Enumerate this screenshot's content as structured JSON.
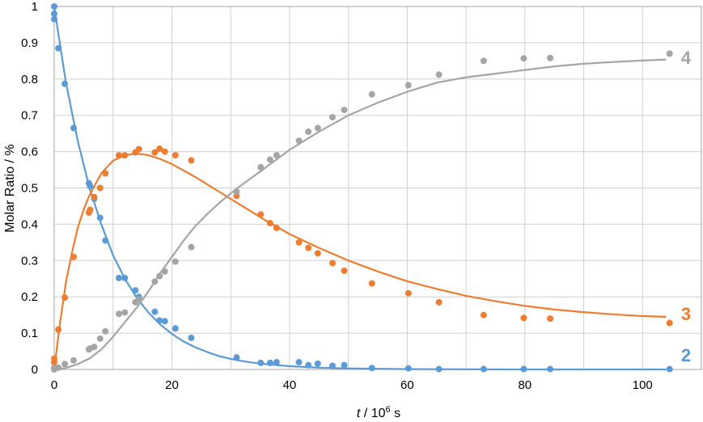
{
  "chart_data": {
    "type": "scatter",
    "xlabel": {
      "italic": "t",
      "text": " / 10",
      "sup": "6",
      "suffix": " s"
    },
    "ylabel": "Molar Ratio / %",
    "xlim": [
      0,
      110
    ],
    "ylim": [
      0,
      1
    ],
    "x_ticks": [
      0,
      20,
      40,
      60,
      80,
      100
    ],
    "y_ticks": [
      0,
      0.1,
      0.2,
      0.3,
      0.4,
      0.5,
      0.6,
      0.7,
      0.8,
      0.9,
      1
    ],
    "x_grid": [
      0,
      10,
      20,
      30,
      40,
      50,
      60,
      70,
      80,
      90,
      100,
      110
    ],
    "grid": true,
    "series": [
      {
        "name": "2",
        "color": "#5b9bd5",
        "points": [
          [
            0,
            1.0
          ],
          [
            0,
            0.98
          ],
          [
            0,
            0.965
          ],
          [
            0.7,
            0.885
          ],
          [
            1.8,
            0.787
          ],
          [
            3.3,
            0.665
          ],
          [
            5.9,
            0.513
          ],
          [
            6.1,
            0.505
          ],
          [
            6.8,
            0.47
          ],
          [
            7.8,
            0.418
          ],
          [
            8.7,
            0.355
          ],
          [
            11,
            0.252
          ],
          [
            12,
            0.252
          ],
          [
            13.8,
            0.218
          ],
          [
            14.4,
            0.2
          ],
          [
            17.1,
            0.159
          ],
          [
            17.9,
            0.135
          ],
          [
            18.8,
            0.133
          ],
          [
            20.6,
            0.113
          ],
          [
            23.3,
            0.087
          ],
          [
            31,
            0.033
          ],
          [
            35.1,
            0.018
          ],
          [
            36.7,
            0.018
          ],
          [
            37.8,
            0.02
          ],
          [
            41.6,
            0.02
          ],
          [
            43.2,
            0.012
          ],
          [
            44.8,
            0.016
          ],
          [
            47.3,
            0.01
          ],
          [
            49.3,
            0.012
          ],
          [
            54,
            0.004
          ],
          [
            60.2,
            0.003
          ],
          [
            65.4,
            0.001
          ],
          [
            73,
            0.001
          ],
          [
            79.8,
            0.001
          ],
          [
            84.3,
            0.001
          ],
          [
            104.6,
            0.001
          ]
        ],
        "fit": [
          [
            0,
            1.0
          ],
          [
            2,
            0.79
          ],
          [
            4,
            0.63
          ],
          [
            6,
            0.5
          ],
          [
            8,
            0.4
          ],
          [
            10,
            0.315
          ],
          [
            12,
            0.25
          ],
          [
            14,
            0.198
          ],
          [
            16,
            0.157
          ],
          [
            18,
            0.124
          ],
          [
            20,
            0.098
          ],
          [
            22,
            0.077
          ],
          [
            24,
            0.061
          ],
          [
            26,
            0.048
          ],
          [
            28,
            0.037
          ],
          [
            30,
            0.029
          ],
          [
            32,
            0.023
          ],
          [
            35,
            0.016
          ],
          [
            40,
            0.009
          ],
          [
            45,
            0.005
          ],
          [
            50,
            0.003
          ],
          [
            60,
            0.001
          ],
          [
            80,
            0.0
          ],
          [
            104,
            0.0
          ]
        ]
      },
      {
        "name": "3",
        "color": "#ed7d31",
        "points": [
          [
            0,
            0.03
          ],
          [
            0,
            0.02
          ],
          [
            0.7,
            0.11
          ],
          [
            1.8,
            0.198
          ],
          [
            3.3,
            0.31
          ],
          [
            5.9,
            0.432
          ],
          [
            6.1,
            0.44
          ],
          [
            6.8,
            0.475
          ],
          [
            7.8,
            0.5
          ],
          [
            8.7,
            0.54
          ],
          [
            11,
            0.59
          ],
          [
            12,
            0.59
          ],
          [
            13.8,
            0.598
          ],
          [
            14.4,
            0.607
          ],
          [
            17.1,
            0.598
          ],
          [
            17.9,
            0.608
          ],
          [
            18.8,
            0.6
          ],
          [
            20.6,
            0.59
          ],
          [
            23.3,
            0.576
          ],
          [
            31,
            0.478
          ],
          [
            35.1,
            0.427
          ],
          [
            36.7,
            0.403
          ],
          [
            37.8,
            0.39
          ],
          [
            41.6,
            0.35
          ],
          [
            43.2,
            0.335
          ],
          [
            44.8,
            0.32
          ],
          [
            47.3,
            0.293
          ],
          [
            49.3,
            0.272
          ],
          [
            54,
            0.237
          ],
          [
            60.2,
            0.21
          ],
          [
            65.4,
            0.185
          ],
          [
            73,
            0.15
          ],
          [
            79.8,
            0.142
          ],
          [
            84.3,
            0.14
          ],
          [
            104.6,
            0.128
          ]
        ],
        "fit": [
          [
            0,
            0.0
          ],
          [
            1,
            0.13
          ],
          [
            2,
            0.24
          ],
          [
            3,
            0.32
          ],
          [
            4,
            0.39
          ],
          [
            5,
            0.44
          ],
          [
            6,
            0.48
          ],
          [
            8,
            0.54
          ],
          [
            10,
            0.575
          ],
          [
            12,
            0.59
          ],
          [
            14,
            0.595
          ],
          [
            16,
            0.59
          ],
          [
            18,
            0.58
          ],
          [
            20,
            0.566
          ],
          [
            24,
            0.53
          ],
          [
            28,
            0.49
          ],
          [
            32,
            0.45
          ],
          [
            36,
            0.41
          ],
          [
            40,
            0.373
          ],
          [
            45,
            0.335
          ],
          [
            50,
            0.3
          ],
          [
            55,
            0.27
          ],
          [
            60,
            0.243
          ],
          [
            65,
            0.222
          ],
          [
            70,
            0.203
          ],
          [
            75,
            0.188
          ],
          [
            80,
            0.175
          ],
          [
            85,
            0.165
          ],
          [
            90,
            0.158
          ],
          [
            95,
            0.152
          ],
          [
            100,
            0.147
          ],
          [
            104,
            0.145
          ]
        ]
      },
      {
        "name": "4",
        "color": "#a5a5a5",
        "points": [
          [
            0,
            0.0
          ],
          [
            0,
            0.005
          ],
          [
            0.7,
            0.005
          ],
          [
            1.8,
            0.015
          ],
          [
            3.3,
            0.025
          ],
          [
            5.9,
            0.055
          ],
          [
            6.1,
            0.058
          ],
          [
            6.8,
            0.062
          ],
          [
            7.8,
            0.085
          ],
          [
            8.7,
            0.105
          ],
          [
            11,
            0.153
          ],
          [
            12,
            0.157
          ],
          [
            13.8,
            0.185
          ],
          [
            14.4,
            0.193
          ],
          [
            17.1,
            0.242
          ],
          [
            17.9,
            0.257
          ],
          [
            18.8,
            0.27
          ],
          [
            20.6,
            0.297
          ],
          [
            23.3,
            0.337
          ],
          [
            31,
            0.49
          ],
          [
            35.1,
            0.557
          ],
          [
            36.7,
            0.578
          ],
          [
            37.8,
            0.59
          ],
          [
            41.6,
            0.63
          ],
          [
            43.2,
            0.655
          ],
          [
            44.8,
            0.665
          ],
          [
            47.3,
            0.695
          ],
          [
            49.3,
            0.715
          ],
          [
            54,
            0.758
          ],
          [
            60.2,
            0.783
          ],
          [
            65.4,
            0.812
          ],
          [
            73,
            0.85
          ],
          [
            79.8,
            0.857
          ],
          [
            84.3,
            0.858
          ],
          [
            104.6,
            0.87
          ]
        ],
        "fit": [
          [
            0,
            0.0
          ],
          [
            2,
            0.004
          ],
          [
            4,
            0.015
          ],
          [
            6,
            0.03
          ],
          [
            8,
            0.055
          ],
          [
            10,
            0.09
          ],
          [
            12,
            0.13
          ],
          [
            14,
            0.17
          ],
          [
            16,
            0.215
          ],
          [
            18,
            0.265
          ],
          [
            20,
            0.31
          ],
          [
            22,
            0.355
          ],
          [
            24,
            0.395
          ],
          [
            26,
            0.428
          ],
          [
            28,
            0.458
          ],
          [
            30,
            0.485
          ],
          [
            32,
            0.51
          ],
          [
            35,
            0.545
          ],
          [
            40,
            0.605
          ],
          [
            45,
            0.655
          ],
          [
            50,
            0.7
          ],
          [
            55,
            0.735
          ],
          [
            60,
            0.765
          ],
          [
            65,
            0.79
          ],
          [
            70,
            0.805
          ],
          [
            75,
            0.815
          ],
          [
            80,
            0.825
          ],
          [
            85,
            0.835
          ],
          [
            90,
            0.842
          ],
          [
            95,
            0.847
          ],
          [
            100,
            0.851
          ],
          [
            104,
            0.854
          ]
        ]
      }
    ]
  }
}
